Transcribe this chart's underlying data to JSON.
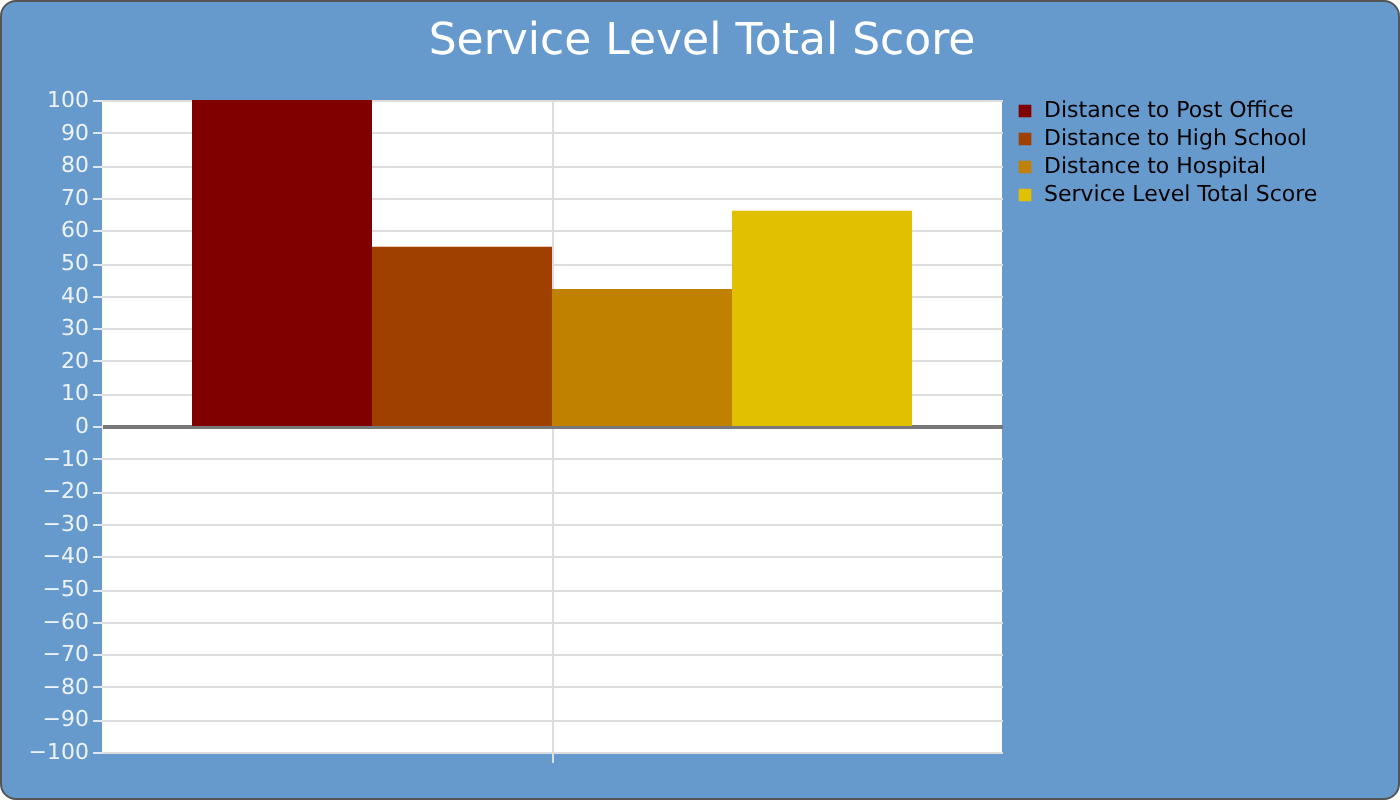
{
  "chart_data": {
    "type": "bar",
    "title": "Service Level Total Score",
    "categories": [
      null
    ],
    "series": [
      {
        "name": "Distance to Post Office",
        "color": "#800000",
        "values": [
          100
        ]
      },
      {
        "name": "Distance to High School",
        "color": "#a04000",
        "values": [
          55
        ]
      },
      {
        "name": "Distance to Hospital",
        "color": "#c08000",
        "values": [
          42
        ]
      },
      {
        "name": "Service Level Total Score",
        "color": "#e0c000",
        "values": [
          66
        ]
      }
    ],
    "ylim": [
      -100,
      100
    ],
    "yticks": [
      -100,
      -90,
      -80,
      -70,
      -60,
      -50,
      -40,
      -30,
      -20,
      -10,
      0,
      10,
      20,
      30,
      40,
      50,
      60,
      70,
      80,
      90,
      100
    ],
    "grid": true,
    "legend": "top right",
    "tick_labels": "y"
  }
}
